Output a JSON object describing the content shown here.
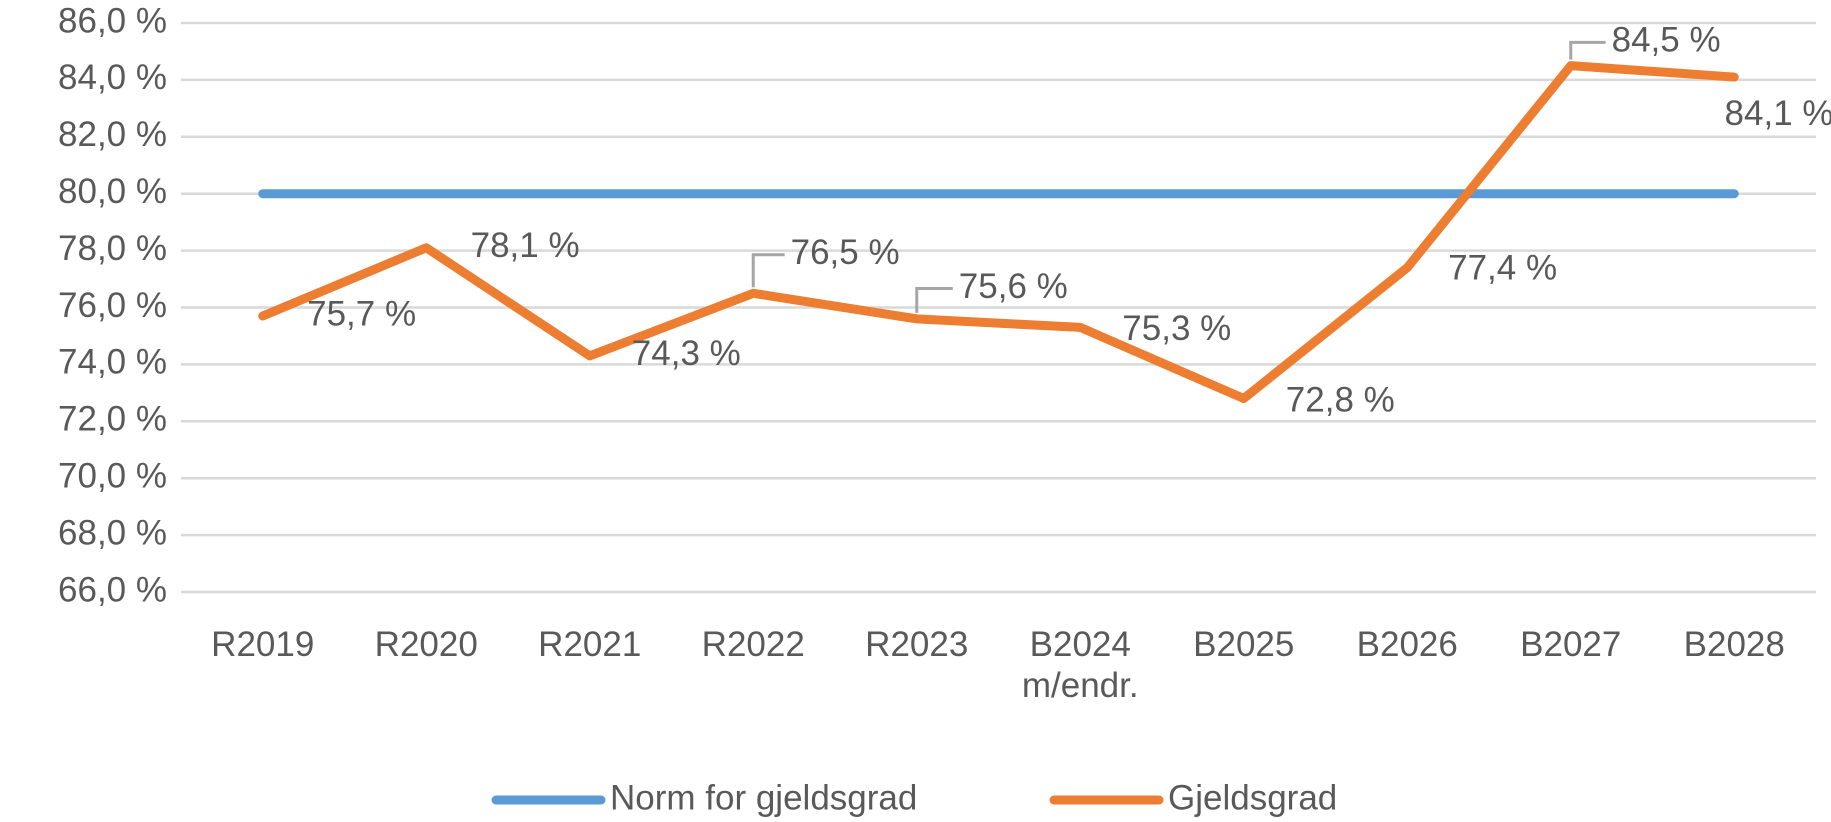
{
  "chart_data": {
    "type": "line",
    "categories": [
      "R2019",
      "R2020",
      "R2021",
      "R2022",
      "R2023",
      "B2024\nm/endr.",
      "B2025",
      "B2026",
      "B2027",
      "B2028"
    ],
    "series": [
      {
        "name": "Norm for gjeldsgrad",
        "color": "#5b9bd5",
        "values": [
          80,
          80,
          80,
          80,
          80,
          80,
          80,
          80,
          80,
          80
        ]
      },
      {
        "name": "Gjeldsgrad",
        "color": "#ed7d31",
        "values": [
          75.7,
          78.1,
          74.3,
          76.5,
          75.6,
          75.3,
          72.8,
          77.4,
          84.5,
          84.1
        ],
        "value_labels": [
          "75,7 %",
          "78,1 %",
          "74,3 %",
          "76,5 %",
          "75,6 %",
          "75,3 %",
          "72,8 %",
          "77,4 %",
          "84,5 %",
          "84,1 %"
        ]
      }
    ],
    "ylim": [
      66,
      86
    ],
    "yticks": [
      {
        "value": 66,
        "label": "66,0 %"
      },
      {
        "value": 68,
        "label": "68,0 %"
      },
      {
        "value": 70,
        "label": "70,0 %"
      },
      {
        "value": 72,
        "label": "72,0 %"
      },
      {
        "value": 74,
        "label": "74,0 %"
      },
      {
        "value": 76,
        "label": "76,0 %"
      },
      {
        "value": 78,
        "label": "78,0 %"
      },
      {
        "value": 80,
        "label": "80,0 %"
      },
      {
        "value": 82,
        "label": "82,0 %"
      },
      {
        "value": 84,
        "label": "84,0 %"
      },
      {
        "value": 86,
        "label": "86,0 %"
      }
    ],
    "grid": true,
    "legend": "bottom"
  }
}
